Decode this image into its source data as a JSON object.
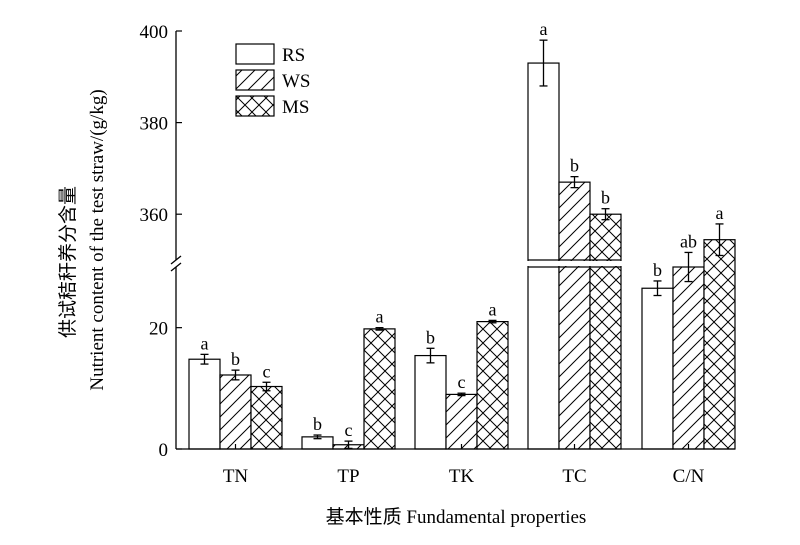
{
  "chart_data": {
    "type": "bar",
    "title": "",
    "xlabel": "基本性质 Fundamental properties",
    "ylabel_cn": "供试秸秆养分含量",
    "ylabel_en": "Nutrient content of the test straw/(g/kg)",
    "categories": [
      "TN",
      "TP",
      "TK",
      "TC",
      "C/N"
    ],
    "series": [
      {
        "name": "RS",
        "pattern": "none",
        "values": [
          14.8,
          2.0,
          15.4,
          393,
          26.5
        ],
        "errors": [
          0.8,
          0.3,
          1.2,
          5,
          1.2
        ],
        "labels": [
          "a",
          "b",
          "b",
          "a",
          "b"
        ]
      },
      {
        "name": "WS",
        "pattern": "diagonal",
        "values": [
          12.2,
          0.7,
          9.0,
          367,
          30.0
        ],
        "errors": [
          0.8,
          0.6,
          0.2,
          1.2,
          2.4
        ],
        "labels": [
          "b",
          "c",
          "c",
          "b",
          "ab"
        ]
      },
      {
        "name": "MS",
        "pattern": "crosshatch",
        "values": [
          10.3,
          19.8,
          21.0,
          360,
          34.5
        ],
        "errors": [
          0.7,
          0.2,
          0.2,
          1.2,
          2.6
        ],
        "labels": [
          "c",
          "a",
          "a",
          "b",
          "a"
        ]
      }
    ],
    "y_axis": {
      "broken": true,
      "lower_range": [
        0,
        30
      ],
      "upper_range": [
        350,
        400
      ],
      "lower_ticks": [
        0,
        20
      ],
      "upper_ticks": [
        360,
        380,
        400
      ]
    },
    "legend": {
      "position": "top-left",
      "entries": [
        "RS",
        "WS",
        "MS"
      ]
    },
    "grid": false,
    "colors": {
      "bar_fill": "#ffffff",
      "stroke": "#000000"
    }
  }
}
